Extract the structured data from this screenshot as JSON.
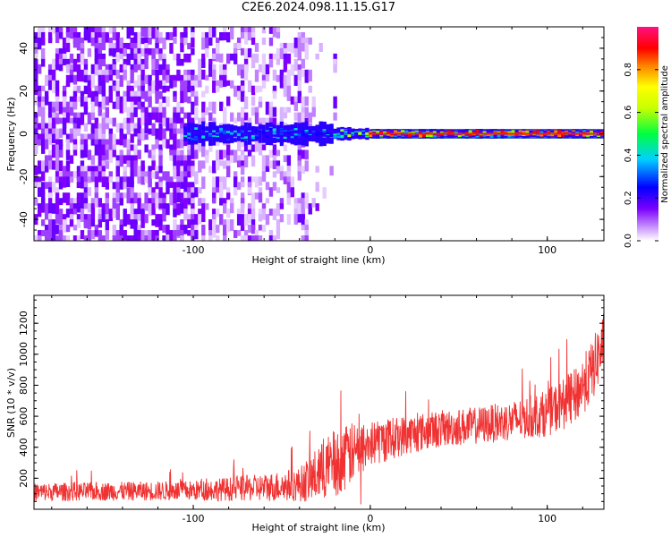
{
  "title": "C2E6.2024.098.11.15.G17",
  "chart_data": [
    {
      "type": "heatmap",
      "xlabel": "Height of straight line (km)",
      "ylabel": "Frequency (Hz)",
      "xlim": [
        -190,
        132
      ],
      "ylim": [
        -50,
        50
      ],
      "xticks": [
        -100,
        0,
        100
      ],
      "yticks": [
        -40,
        -20,
        0,
        20,
        40
      ],
      "colorbar": {
        "label": "Normalized spectral amplitude",
        "range": [
          0,
          1
        ],
        "ticks": [
          "0.0",
          "0.2",
          "0.4",
          "0.6",
          "0.8"
        ]
      },
      "description_of_pattern": "Diffuse purple noise below about -35 km; concentrated energy near 0 Hz from about -105 km upward, strongest (red) near 0 Hz above about 0 km"
    },
    {
      "type": "line",
      "xlabel": "Height of straight line (km)",
      "ylabel": "SNR (10 * v/v)",
      "xlim": [
        -190,
        132
      ],
      "ylim": [
        0,
        1380
      ],
      "xticks": [
        -100,
        0,
        100
      ],
      "yticks": [
        200,
        400,
        600,
        800,
        1000,
        1200
      ],
      "series": [
        {
          "color": "#f03232",
          "envelope_x": [
            -190,
            -150,
            -100,
            -60,
            -40,
            -30,
            -20,
            -10,
            0,
            20,
            40,
            60,
            80,
            100,
            115,
            125,
            132
          ],
          "envelope_mean": [
            110,
            115,
            120,
            140,
            160,
            220,
            300,
            360,
            420,
            480,
            520,
            540,
            570,
            620,
            720,
            880,
            1080
          ],
          "envelope_spread": [
            60,
            60,
            65,
            90,
            110,
            180,
            220,
            200,
            150,
            130,
            120,
            120,
            130,
            150,
            180,
            200,
            200
          ]
        }
      ]
    }
  ]
}
